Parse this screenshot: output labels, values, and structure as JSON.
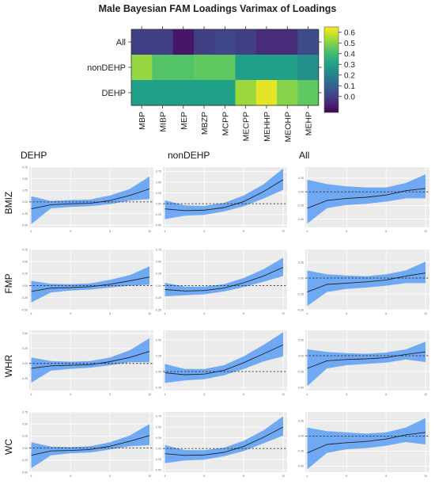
{
  "heatmap": {
    "title": "Male Bayesian FAM Loadings Varimax of Loadings",
    "rows": [
      "All",
      "nonDEHP",
      "DEHP"
    ],
    "columns": [
      "MBP",
      "MIBP",
      "MEP",
      "MBZP",
      "MCPP",
      "MECPP",
      "MEHHP",
      "MEOHP",
      "MEHP"
    ],
    "values": [
      [
        0.0,
        0.0,
        -0.1,
        0.0,
        0.02,
        0.0,
        -0.05,
        -0.05,
        0.03
      ],
      [
        0.52,
        0.43,
        0.43,
        0.45,
        0.45,
        0.3,
        0.3,
        0.3,
        0.25
      ],
      [
        0.3,
        0.3,
        0.3,
        0.3,
        0.3,
        0.53,
        0.62,
        0.5,
        0.45
      ]
    ],
    "colorbar": {
      "min": -0.15,
      "max": 0.65,
      "ticks": [
        "0.6",
        "0.5",
        "0.4",
        "0.3",
        "0.2",
        "0.1",
        "0.0"
      ]
    }
  },
  "panels": {
    "column_titles": [
      "DEHP",
      "nonDEHP",
      "All"
    ],
    "row_labels": [
      "BMIZ",
      "FMP",
      "WHR",
      "WC"
    ]
  },
  "chart_data": [
    {
      "type": "heatmap",
      "title": "Male Bayesian FAM Loadings Varimax of Loadings",
      "x": [
        "MBP",
        "MIBP",
        "MEP",
        "MBZP",
        "MCPP",
        "MECPP",
        "MEHHP",
        "MEOHP",
        "MEHP"
      ],
      "y": [
        "All",
        "nonDEHP",
        "DEHP"
      ],
      "values": [
        [
          0.0,
          0.0,
          -0.1,
          0.0,
          0.02,
          0.0,
          -0.05,
          -0.05,
          0.03
        ],
        [
          0.52,
          0.43,
          0.43,
          0.45,
          0.45,
          0.3,
          0.3,
          0.3,
          0.25
        ],
        [
          0.3,
          0.3,
          0.3,
          0.3,
          0.3,
          0.53,
          0.62,
          0.5,
          0.45
        ]
      ],
      "color_range": [
        -0.15,
        0.65
      ],
      "colormap": "viridis",
      "legend": "right"
    },
    {
      "type": "line",
      "panel_grid": {
        "columns": [
          "DEHP",
          "nonDEHP",
          "All"
        ],
        "rows": [
          "BMIZ",
          "FMP",
          "WHR",
          "WC"
        ]
      },
      "x": [
        4,
        5,
        6,
        7,
        8,
        9,
        10
      ],
      "x_ticks": [
        4,
        6,
        8,
        10
      ],
      "y_ticks": [
        0.75,
        0.5,
        0.25,
        0.0,
        -0.25,
        -0.5
      ],
      "reference_line": 0.0,
      "line_color": "#222222",
      "band_color": "#5b9ef5",
      "background": "#ebebeb",
      "grid": true,
      "series": [
        {
          "row": "BMIZ",
          "column": "DEHP",
          "ylim": [
            -0.55,
            0.75
          ],
          "mean": [
            -0.15,
            -0.06,
            -0.04,
            -0.03,
            0.03,
            0.14,
            0.28
          ],
          "lower": [
            -0.48,
            -0.14,
            -0.11,
            -0.09,
            -0.05,
            0.03,
            0.06
          ],
          "upper": [
            0.12,
            0.02,
            0.04,
            0.05,
            0.14,
            0.28,
            0.55
          ]
        },
        {
          "row": "BMIZ",
          "column": "nonDEHP",
          "ylim": [
            -0.55,
            0.85
          ],
          "mean": [
            -0.12,
            -0.16,
            -0.15,
            -0.09,
            0.05,
            0.28,
            0.56
          ],
          "lower": [
            -0.36,
            -0.28,
            -0.26,
            -0.18,
            -0.06,
            0.12,
            0.32
          ],
          "upper": [
            0.08,
            -0.04,
            -0.05,
            0.02,
            0.19,
            0.45,
            0.82
          ]
        },
        {
          "row": "BMIZ",
          "column": "All",
          "ylim": [
            -0.65,
            0.45
          ],
          "mean": [
            -0.3,
            -0.16,
            -0.12,
            -0.1,
            -0.06,
            0.02,
            0.06
          ],
          "lower": [
            -0.58,
            -0.3,
            -0.24,
            -0.22,
            -0.18,
            -0.12,
            -0.12
          ],
          "upper": [
            0.22,
            0.14,
            0.1,
            0.08,
            0.08,
            0.16,
            0.32
          ]
        },
        {
          "row": "FMP",
          "column": "DEHP",
          "ylim": [
            -0.5,
            0.75
          ],
          "mean": [
            -0.12,
            -0.05,
            -0.04,
            -0.02,
            0.03,
            0.1,
            0.18
          ],
          "lower": [
            -0.35,
            -0.14,
            -0.1,
            -0.08,
            -0.04,
            0.0,
            0.02
          ],
          "upper": [
            0.1,
            0.04,
            0.03,
            0.05,
            0.12,
            0.22,
            0.4
          ]
        },
        {
          "row": "FMP",
          "column": "nonDEHP",
          "ylim": [
            -0.5,
            0.75
          ],
          "mean": [
            -0.08,
            -0.11,
            -0.1,
            -0.05,
            0.06,
            0.2,
            0.38
          ],
          "lower": [
            -0.22,
            -0.2,
            -0.18,
            -0.12,
            -0.03,
            0.08,
            0.2
          ],
          "upper": [
            0.06,
            -0.02,
            -0.02,
            0.03,
            0.16,
            0.34,
            0.58
          ]
        },
        {
          "row": "FMP",
          "column": "All",
          "ylim": [
            -0.5,
            0.45
          ],
          "mean": [
            -0.22,
            -0.1,
            -0.08,
            -0.06,
            -0.03,
            0.03,
            0.08
          ],
          "lower": [
            -0.44,
            -0.22,
            -0.17,
            -0.15,
            -0.12,
            -0.08,
            -0.08
          ],
          "upper": [
            0.12,
            0.06,
            0.04,
            0.03,
            0.06,
            0.12,
            0.26
          ]
        },
        {
          "row": "WHR",
          "column": "DEHP",
          "ylim": [
            -0.45,
            0.55
          ],
          "mean": [
            -0.08,
            -0.04,
            -0.03,
            -0.02,
            0.03,
            0.1,
            0.2
          ],
          "lower": [
            -0.32,
            -0.12,
            -0.09,
            -0.07,
            -0.03,
            0.02,
            0.02
          ],
          "upper": [
            0.1,
            0.04,
            0.03,
            0.04,
            0.1,
            0.22,
            0.42
          ]
        },
        {
          "row": "WHR",
          "column": "nonDEHP",
          "ylim": [
            -0.3,
            0.65
          ],
          "mean": [
            -0.02,
            -0.05,
            -0.04,
            0.02,
            0.14,
            0.28,
            0.42
          ],
          "lower": [
            -0.18,
            -0.14,
            -0.12,
            -0.06,
            0.04,
            0.16,
            0.24
          ],
          "upper": [
            0.12,
            0.04,
            0.04,
            0.1,
            0.24,
            0.42,
            0.62
          ]
        },
        {
          "row": "WHR",
          "column": "All",
          "ylim": [
            -0.55,
            0.4
          ],
          "mean": [
            -0.2,
            -0.08,
            -0.06,
            -0.05,
            -0.03,
            0.02,
            0.06
          ],
          "lower": [
            -0.48,
            -0.2,
            -0.15,
            -0.13,
            -0.11,
            -0.06,
            -0.1
          ],
          "upper": [
            0.1,
            0.06,
            0.04,
            0.03,
            0.05,
            0.1,
            0.22
          ]
        },
        {
          "row": "WC",
          "column": "DEHP",
          "ylim": [
            -0.5,
            0.75
          ],
          "mean": [
            -0.15,
            -0.06,
            -0.05,
            -0.03,
            0.04,
            0.14,
            0.26
          ],
          "lower": [
            -0.42,
            -0.15,
            -0.11,
            -0.09,
            -0.03,
            0.04,
            0.06
          ],
          "upper": [
            0.12,
            0.03,
            0.02,
            0.04,
            0.12,
            0.26,
            0.5
          ]
        },
        {
          "row": "WC",
          "column": "nonDEHP",
          "ylim": [
            -0.55,
            0.85
          ],
          "mean": [
            -0.12,
            -0.16,
            -0.15,
            -0.09,
            0.05,
            0.26,
            0.5
          ],
          "lower": [
            -0.34,
            -0.28,
            -0.26,
            -0.18,
            -0.06,
            0.12,
            0.3
          ],
          "upper": [
            0.08,
            -0.04,
            -0.04,
            0.02,
            0.18,
            0.42,
            0.75
          ]
        },
        {
          "row": "WC",
          "column": "All",
          "ylim": [
            -0.6,
            0.4
          ],
          "mean": [
            -0.28,
            -0.14,
            -0.11,
            -0.09,
            -0.05,
            0.02,
            0.06
          ],
          "lower": [
            -0.55,
            -0.28,
            -0.22,
            -0.2,
            -0.16,
            -0.1,
            -0.14
          ],
          "upper": [
            0.14,
            0.08,
            0.06,
            0.04,
            0.06,
            0.14,
            0.3
          ]
        }
      ]
    }
  ]
}
